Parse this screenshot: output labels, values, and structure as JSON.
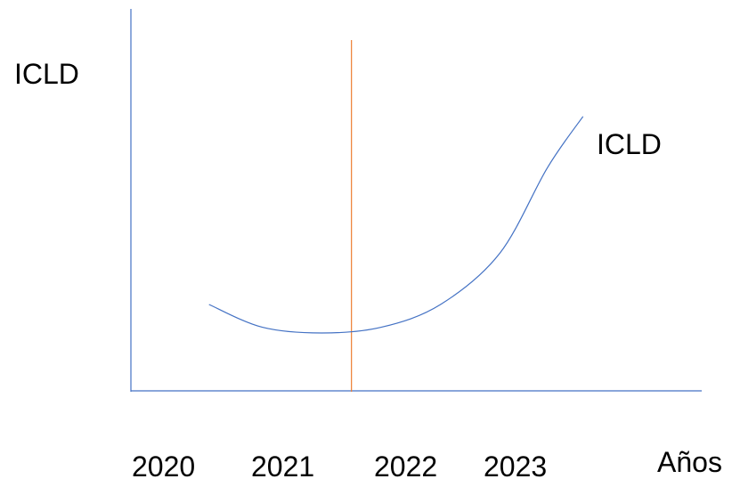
{
  "chart_data": {
    "type": "line",
    "ylabel": "ICLD",
    "xlabel": "Años",
    "categories": [
      "2020",
      "2021",
      "2022",
      "2023"
    ],
    "series": [
      {
        "name": "ICLD",
        "x": [
          2020.35,
          2020.8,
          2021.3,
          2021.8,
          2022.3,
          2022.8,
          2023.2,
          2023.5
        ],
        "y": [
          0.3,
          0.22,
          0.2,
          0.22,
          0.3,
          0.48,
          0.78,
          0.96
        ]
      }
    ],
    "reference_line": {
      "x": 2021.55
    },
    "grid": false,
    "colors": {
      "axis": "#4472C4",
      "curve": "#4472C4",
      "reference_line": "#ED7D31"
    }
  }
}
